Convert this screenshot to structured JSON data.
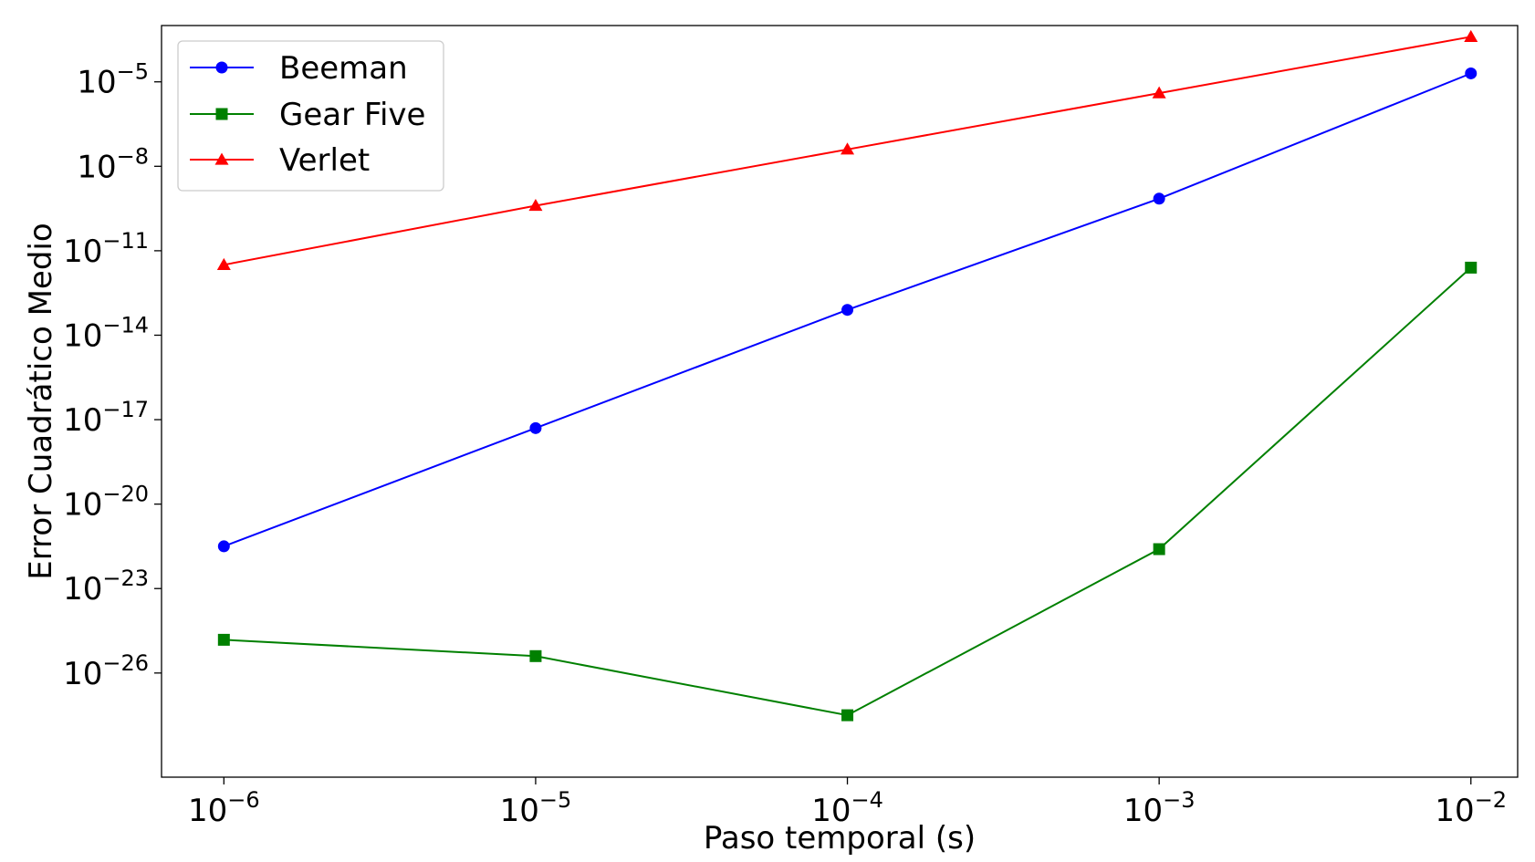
{
  "chart_data": {
    "type": "line",
    "xlabel": "Paso temporal (s)",
    "ylabel": "Error Cuadrático Medio",
    "xscale": "log",
    "yscale": "log",
    "xlim_exponent": [
      -6.2,
      -1.85
    ],
    "ylim_exponent": [
      -29.7,
      -3.0
    ],
    "grid": false,
    "legend_placement": "top-left",
    "x": [
      1e-06,
      1e-05,
      0.0001,
      0.001,
      0.01
    ],
    "x_exponents": [
      -6,
      -5,
      -4,
      -3,
      -2
    ],
    "x_ticks": [
      {
        "base": "10",
        "exp": "−6",
        "value": -6
      },
      {
        "base": "10",
        "exp": "−5",
        "value": -5
      },
      {
        "base": "10",
        "exp": "−4",
        "value": -4
      },
      {
        "base": "10",
        "exp": "−3",
        "value": -3
      },
      {
        "base": "10",
        "exp": "−2",
        "value": -2
      }
    ],
    "y_ticks": [
      {
        "base": "10",
        "exp": "−5",
        "value": -5
      },
      {
        "base": "10",
        "exp": "−8",
        "value": -8
      },
      {
        "base": "10",
        "exp": "−11",
        "value": -11
      },
      {
        "base": "10",
        "exp": "−14",
        "value": -14
      },
      {
        "base": "10",
        "exp": "−17",
        "value": -17
      },
      {
        "base": "10",
        "exp": "−20",
        "value": -20
      },
      {
        "base": "10",
        "exp": "−23",
        "value": -23
      },
      {
        "base": "10",
        "exp": "−26",
        "value": -26
      }
    ],
    "series": [
      {
        "name": "Beeman",
        "color": "#0000ff",
        "marker": "circle",
        "values": [
          3e-22,
          5e-18,
          8e-14,
          7e-10,
          2e-05
        ],
        "log_values": [
          -21.5,
          -17.3,
          -13.1,
          -9.15,
          -4.7
        ]
      },
      {
        "name": "Gear Five",
        "color": "#008000",
        "marker": "square",
        "values": [
          1.5e-25,
          4e-26,
          3e-28,
          2.5e-22,
          2.5e-12
        ],
        "log_values": [
          -24.82,
          -25.4,
          -27.5,
          -21.6,
          -11.6
        ]
      },
      {
        "name": "Verlet",
        "color": "#ff0000",
        "marker": "triangle",
        "values": [
          3e-12,
          4e-10,
          4e-08,
          4e-06,
          0.0004
        ],
        "log_values": [
          -11.5,
          -9.4,
          -7.4,
          -5.4,
          -3.4
        ]
      }
    ]
  }
}
